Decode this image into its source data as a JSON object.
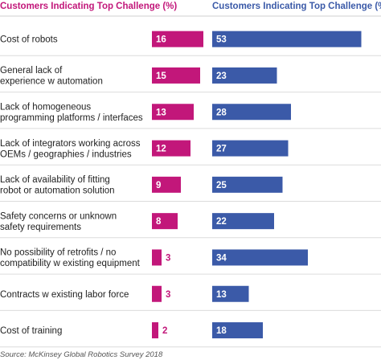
{
  "chart_data": {
    "type": "bar",
    "headers": [
      "Customers Indicating Top Challenge (%)",
      "Customers Indicating Top Challenge (%)"
    ],
    "categories": [
      [
        "Cost of robots"
      ],
      [
        "General lack of",
        "experience w automation"
      ],
      [
        "Lack of homogeneous",
        "programming platforms / interfaces"
      ],
      [
        "Lack of integrators working across",
        "OEMs / geographies / industries"
      ],
      [
        "Lack of availability of fitting",
        "robot or automation solution"
      ],
      [
        "Safety concerns or unknown",
        "safety requirements"
      ],
      [
        "No possibility of retrofits / no",
        "compatibility w existing equipment"
      ],
      [
        "Contracts w existing labor force"
      ],
      [
        "Cost of training"
      ]
    ],
    "series": [
      {
        "values": [
          16,
          15,
          13,
          12,
          9,
          8,
          3,
          3,
          2
        ],
        "color": "#c2177a"
      },
      {
        "values": [
          53,
          23,
          28,
          27,
          25,
          22,
          34,
          13,
          18
        ],
        "color": "#3b5aa8"
      }
    ],
    "source": "Source: McKinsey Global Robotics Survey 2018"
  }
}
